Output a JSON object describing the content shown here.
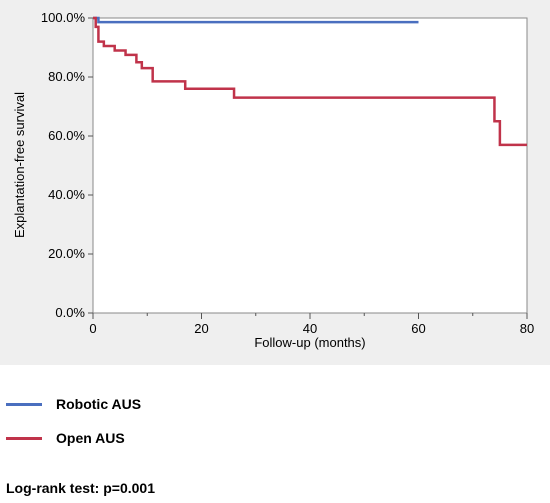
{
  "chart_data": {
    "type": "line",
    "subtype": "kaplan-meier step",
    "xlabel": "Follow-up (months)",
    "ylabel": "Explantation-free survival",
    "xlim": [
      0,
      80
    ],
    "ylim": [
      0,
      100
    ],
    "x_ticks": [
      "0",
      "20",
      "40",
      "60",
      "80"
    ],
    "y_ticks": [
      "0.0%",
      "20.0%",
      "40.0%",
      "60.0%",
      "80.0%",
      "100.0%"
    ],
    "grid": false,
    "background": "#efefef",
    "series": [
      {
        "name": "Robotic AUS",
        "color": "#4a6fbf",
        "steps": [
          [
            0,
            100
          ],
          [
            1,
            100
          ],
          [
            1,
            98.6
          ],
          [
            60,
            98.6
          ]
        ]
      },
      {
        "name": "Open AUS",
        "color": "#c0334a",
        "steps": [
          [
            0,
            100
          ],
          [
            0.5,
            100
          ],
          [
            0.5,
            97
          ],
          [
            1,
            97
          ],
          [
            1,
            92
          ],
          [
            2,
            92
          ],
          [
            2,
            90.5
          ],
          [
            4,
            90.5
          ],
          [
            4,
            89
          ],
          [
            6,
            89
          ],
          [
            6,
            87.5
          ],
          [
            8,
            87.5
          ],
          [
            8,
            85
          ],
          [
            9,
            85
          ],
          [
            9,
            83
          ],
          [
            11,
            83
          ],
          [
            11,
            78.5
          ],
          [
            17,
            78.5
          ],
          [
            17,
            76
          ],
          [
            26,
            76
          ],
          [
            26,
            73
          ],
          [
            74,
            73
          ],
          [
            74,
            65
          ],
          [
            75,
            65
          ],
          [
            75,
            57
          ],
          [
            80,
            57
          ]
        ]
      }
    ]
  },
  "legend": {
    "items": [
      {
        "label": "Robotic AUS",
        "color": "#4a6fbf"
      },
      {
        "label": "Open AUS",
        "color": "#c0334a"
      }
    ]
  },
  "footer": {
    "stat_text": "Log-rank test: p=0.001"
  }
}
